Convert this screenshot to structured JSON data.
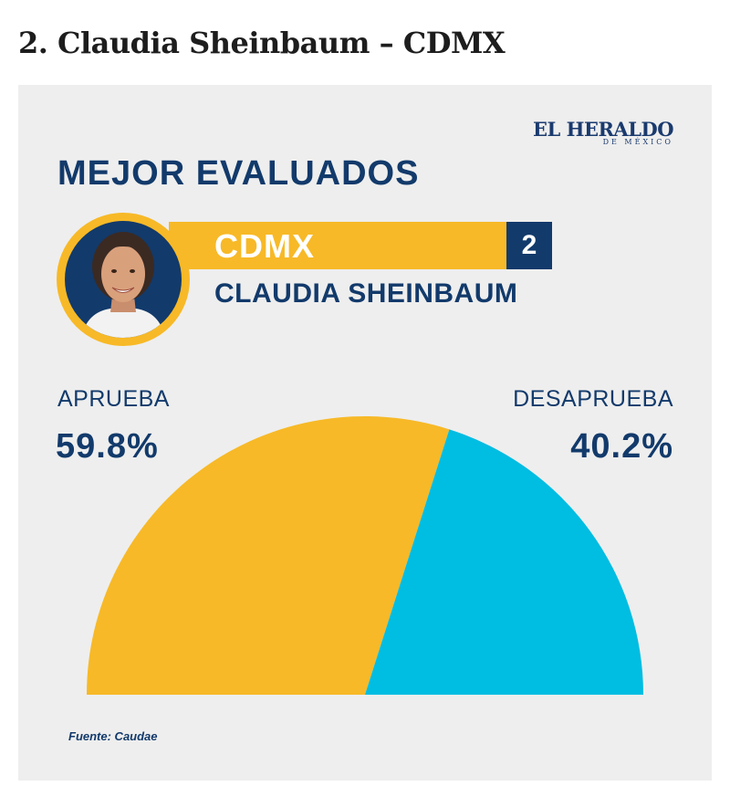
{
  "article": {
    "heading": "2. Claudia Sheinbaum – CDMX"
  },
  "card": {
    "brand": {
      "main": "EL HERALDO",
      "sub": "DE MÉXICO"
    },
    "title": "MEJOR EVALUADOS",
    "region": "CDMX",
    "rank": "2",
    "name": "CLAUDIA SHEINBAUM",
    "source": "Fuente: Caudae",
    "avatar_icon": "person-portrait-icon"
  },
  "chart_data": {
    "type": "pie",
    "subtype": "semicircle",
    "slices": [
      {
        "label": "APRUEBA",
        "value": 59.8,
        "display": "59.8%",
        "color": "#f7b927"
      },
      {
        "label": "DESAPRUEBA",
        "value": 40.2,
        "display": "40.2%",
        "color": "#00bde2"
      }
    ]
  },
  "colors": {
    "navy": "#123a6b",
    "yellow": "#f7b927",
    "cyan": "#00bde2",
    "card_bg": "#eeeeee"
  }
}
